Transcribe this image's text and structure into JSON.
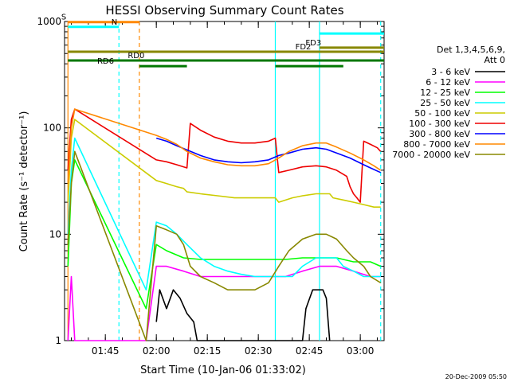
{
  "chart_data": {
    "type": "line",
    "title": "HESSI Observing Summary Count Rates",
    "xlabel": "Start Time (10-Jan-06 01:33:02)",
    "ylabel": "Count Rate (s⁻¹ detector⁻¹)",
    "yscale": "log",
    "ylim": [
      1,
      1000
    ],
    "xlim_minutes": [
      0,
      94
    ],
    "x_ticks": [
      {
        "minute": 12,
        "label": "01:45"
      },
      {
        "minute": 27,
        "label": "02:00"
      },
      {
        "minute": 42,
        "label": "02:15"
      },
      {
        "minute": 57,
        "label": "02:30"
      },
      {
        "minute": 72,
        "label": "02:45"
      },
      {
        "minute": 87,
        "label": "03:00"
      }
    ],
    "y_ticks": [
      {
        "value": 1,
        "label": "1"
      },
      {
        "value": 10,
        "label": "10"
      },
      {
        "value": 100,
        "label": "100"
      },
      {
        "value": 1000,
        "label": "1000"
      }
    ],
    "legend": {
      "placement": "right",
      "header_lines": [
        "Det 1,3,4,5,6,9,",
        "Att 0"
      ],
      "entries": [
        {
          "label": "3 - 6 keV",
          "color": "#000000"
        },
        {
          "label": "6 - 12 keV",
          "color": "#ff00ff"
        },
        {
          "label": "12 - 25 keV",
          "color": "#00ff00"
        },
        {
          "label": "25 - 50 keV",
          "color": "#00ffff"
        },
        {
          "label": "50 - 100 keV",
          "color": "#cccc00"
        },
        {
          "label": "100 - 300 keV",
          "color": "#ee0000"
        },
        {
          "label": "300 - 800 keV",
          "color": "#0000ff"
        },
        {
          "label": "800 - 7000 keV",
          "color": "#ff8800"
        },
        {
          "label": "7000 - 20000 keV",
          "color": "#888800"
        }
      ]
    },
    "series": [
      {
        "name": "3 - 6 keV",
        "color": "#000000",
        "points": [
          [
            27,
            1.5
          ],
          [
            28,
            3
          ],
          [
            30,
            2
          ],
          [
            32,
            3
          ],
          [
            34,
            2.5
          ],
          [
            36,
            1.8
          ],
          [
            38,
            1.5
          ],
          [
            39,
            1
          ],
          [
            70,
            1
          ],
          [
            71,
            2
          ],
          [
            73,
            3
          ],
          [
            76,
            3
          ],
          [
            77,
            2.5
          ],
          [
            78,
            1
          ]
        ]
      },
      {
        "name": "6 - 12 keV",
        "color": "#ff00ff",
        "points": [
          [
            1,
            1
          ],
          [
            2,
            4
          ],
          [
            3,
            1
          ],
          [
            24,
            1
          ],
          [
            27,
            5
          ],
          [
            30,
            5
          ],
          [
            35,
            4.5
          ],
          [
            40,
            4
          ],
          [
            45,
            4
          ],
          [
            50,
            4
          ],
          [
            55,
            4
          ],
          [
            60,
            4
          ],
          [
            65,
            4
          ],
          [
            70,
            4.5
          ],
          [
            75,
            5
          ],
          [
            80,
            5
          ],
          [
            85,
            4.5
          ],
          [
            90,
            4
          ],
          [
            93,
            4
          ]
        ]
      },
      {
        "name": "12 - 25 keV",
        "color": "#00ff00",
        "points": [
          [
            1,
            5
          ],
          [
            2,
            30
          ],
          [
            3,
            50
          ],
          [
            24,
            2
          ],
          [
            27,
            8
          ],
          [
            30,
            7
          ],
          [
            35,
            6
          ],
          [
            40,
            5.8
          ],
          [
            45,
            5.8
          ],
          [
            50,
            5.8
          ],
          [
            55,
            5.8
          ],
          [
            60,
            5.8
          ],
          [
            65,
            5.8
          ],
          [
            70,
            6
          ],
          [
            75,
            6
          ],
          [
            80,
            6
          ],
          [
            85,
            5.5
          ],
          [
            90,
            5.5
          ],
          [
            93,
            5
          ]
        ]
      },
      {
        "name": "25 - 50 keV",
        "color": "#00ffff",
        "points": [
          [
            1,
            10
          ],
          [
            2,
            40
          ],
          [
            3,
            80
          ],
          [
            24,
            3
          ],
          [
            27,
            13
          ],
          [
            30,
            12
          ],
          [
            33,
            10
          ],
          [
            36,
            8
          ],
          [
            40,
            6
          ],
          [
            44,
            5
          ],
          [
            48,
            4.5
          ],
          [
            52,
            4.2
          ],
          [
            56,
            4
          ],
          [
            60,
            4
          ],
          [
            64,
            4
          ],
          [
            67,
            4
          ],
          [
            70,
            5
          ],
          [
            74,
            6
          ],
          [
            78,
            6
          ],
          [
            80,
            6
          ],
          [
            82,
            5
          ],
          [
            85,
            4.5
          ],
          [
            88,
            4
          ],
          [
            91,
            4
          ],
          [
            93,
            4
          ]
        ]
      },
      {
        "name": "50 - 100 keV",
        "color": "#cccc00",
        "points": [
          [
            1,
            20
          ],
          [
            2,
            80
          ],
          [
            3,
            120
          ],
          [
            27,
            32
          ],
          [
            30,
            30
          ],
          [
            33,
            28
          ],
          [
            35,
            27
          ],
          [
            36,
            25
          ],
          [
            40,
            24
          ],
          [
            45,
            23
          ],
          [
            50,
            22
          ],
          [
            55,
            22
          ],
          [
            60,
            22
          ],
          [
            62,
            22
          ],
          [
            63,
            20
          ],
          [
            67,
            22
          ],
          [
            70,
            23
          ],
          [
            74,
            24
          ],
          [
            78,
            24
          ],
          [
            79,
            22
          ],
          [
            82,
            21
          ],
          [
            85,
            20
          ],
          [
            88,
            19
          ],
          [
            91,
            18
          ],
          [
            93,
            18
          ]
        ]
      },
      {
        "name": "100 - 300 keV",
        "color": "#ee0000",
        "points": [
          [
            1,
            40
          ],
          [
            2,
            120
          ],
          [
            3,
            150
          ],
          [
            27,
            50
          ],
          [
            30,
            48
          ],
          [
            33,
            45
          ],
          [
            36,
            42
          ],
          [
            37,
            110
          ],
          [
            40,
            95
          ],
          [
            44,
            82
          ],
          [
            48,
            75
          ],
          [
            52,
            72
          ],
          [
            56,
            72
          ],
          [
            60,
            75
          ],
          [
            62,
            80
          ],
          [
            63,
            38
          ],
          [
            66,
            40
          ],
          [
            70,
            43
          ],
          [
            74,
            44
          ],
          [
            77,
            43
          ],
          [
            80,
            40
          ],
          [
            83,
            35
          ],
          [
            84,
            28
          ],
          [
            85,
            24
          ],
          [
            86,
            22
          ],
          [
            87,
            20
          ],
          [
            88,
            75
          ],
          [
            90,
            70
          ],
          [
            92,
            65
          ],
          [
            93,
            60
          ]
        ]
      },
      {
        "name": "300 - 800 keV",
        "color": "#0000ff",
        "points": [
          [
            27,
            80
          ],
          [
            30,
            75
          ],
          [
            33,
            68
          ],
          [
            36,
            62
          ],
          [
            40,
            55
          ],
          [
            44,
            50
          ],
          [
            48,
            48
          ],
          [
            52,
            47
          ],
          [
            56,
            48
          ],
          [
            60,
            50
          ],
          [
            63,
            55
          ],
          [
            66,
            58
          ],
          [
            70,
            63
          ],
          [
            74,
            65
          ],
          [
            77,
            63
          ],
          [
            80,
            58
          ],
          [
            84,
            52
          ],
          [
            88,
            45
          ],
          [
            90,
            42
          ],
          [
            93,
            38
          ]
        ]
      },
      {
        "name": "800 - 7000 keV",
        "color": "#ff8800",
        "points": [
          [
            1,
            30
          ],
          [
            2,
            100
          ],
          [
            3,
            150
          ],
          [
            27,
            85
          ],
          [
            30,
            78
          ],
          [
            33,
            70
          ],
          [
            36,
            60
          ],
          [
            40,
            52
          ],
          [
            44,
            48
          ],
          [
            48,
            45
          ],
          [
            52,
            44
          ],
          [
            56,
            44
          ],
          [
            60,
            46
          ],
          [
            63,
            52
          ],
          [
            66,
            60
          ],
          [
            70,
            68
          ],
          [
            74,
            72
          ],
          [
            77,
            72
          ],
          [
            80,
            66
          ],
          [
            84,
            58
          ],
          [
            88,
            50
          ],
          [
            91,
            44
          ],
          [
            93,
            40
          ]
        ]
      },
      {
        "name": "7000 - 20000 keV",
        "color": "#888800",
        "points": [
          [
            1,
            8
          ],
          [
            2,
            30
          ],
          [
            3,
            60
          ],
          [
            24,
            1
          ],
          [
            27,
            12
          ],
          [
            30,
            11
          ],
          [
            33,
            10
          ],
          [
            35,
            8
          ],
          [
            37,
            5
          ],
          [
            40,
            4
          ],
          [
            44,
            3.5
          ],
          [
            48,
            3
          ],
          [
            52,
            3
          ],
          [
            56,
            3
          ],
          [
            60,
            3.5
          ],
          [
            63,
            5
          ],
          [
            66,
            7
          ],
          [
            70,
            9
          ],
          [
            74,
            10
          ],
          [
            77,
            10
          ],
          [
            80,
            9
          ],
          [
            83,
            7
          ],
          [
            85,
            6
          ],
          [
            88,
            5
          ],
          [
            90,
            4
          ],
          [
            93,
            3.5
          ]
        ]
      }
    ],
    "flags": [
      {
        "label": "S",
        "color": "#ff8800",
        "ys": 988,
        "xs": 1,
        "xe": 22,
        "label_at": 1
      },
      {
        "label": "N",
        "color": "#00ffff",
        "ys": 890,
        "xs": 1,
        "xe": 16,
        "label_at": 16
      },
      {
        "label": "FD2",
        "color": "#888800",
        "ys": 520,
        "xs": 1,
        "xe": 94,
        "label_at": 73
      },
      {
        "label": "FD3",
        "color": "#888800",
        "ys": 568,
        "xs": 75,
        "xe": 94,
        "label_at": 76
      },
      {
        "label": "RD0",
        "color": "#007700",
        "ys": 430,
        "xs": 1,
        "xe": 94,
        "label_at": 24
      },
      {
        "label": "RD6",
        "color": "#007700",
        "ys": 380,
        "xs": 22,
        "xe": 36,
        "label_at": 15
      },
      {
        "label": "",
        "color": "#00ffff",
        "ys": 770,
        "xs": 75,
        "xe": 94,
        "label_at": 0
      },
      {
        "label": "",
        "color": "#007700",
        "ys": 380,
        "xs": 62,
        "xe": 82,
        "label_at": 0
      }
    ],
    "vlines": [
      {
        "minute": 1,
        "color": "#ff8800",
        "dashed": false
      },
      {
        "minute": 16,
        "color": "#00ffff",
        "dashed": true
      },
      {
        "minute": 22,
        "color": "#ff8800",
        "dashed": true
      },
      {
        "minute": 62,
        "color": "#00ffff",
        "dashed": false
      },
      {
        "minute": 75,
        "color": "#00ffff",
        "dashed": false
      },
      {
        "minute": 93,
        "color": "#00ffff",
        "dashed": true
      }
    ]
  },
  "footer_timestamp": "20-Dec-2009 05:50"
}
